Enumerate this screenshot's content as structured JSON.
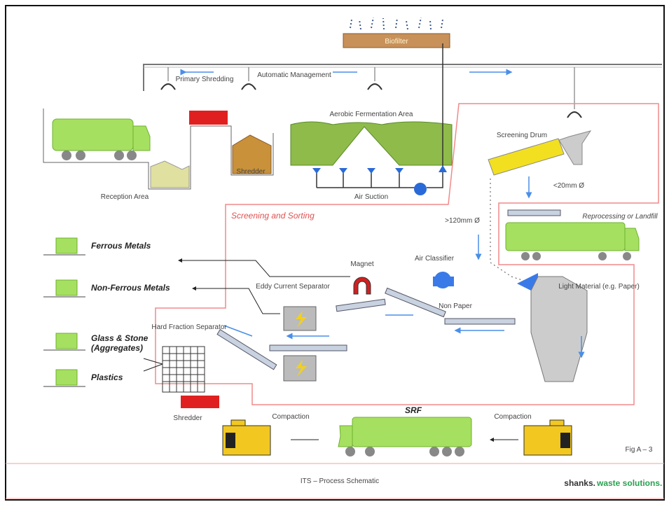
{
  "header": {
    "title": "ITS – Process Schematic",
    "figure": "Fig A – 3",
    "brand": {
      "name": "shanks.",
      "tagline": "waste solutions."
    }
  },
  "labels": {
    "biofilter": "Biofilter",
    "automatic": "Automatic Management",
    "primary": "Primary Shredding",
    "aerobic": "Aerobic Fermentation Area",
    "drum": "Screening Drum",
    "reception": "Reception Area",
    "shredded": "Shredder",
    "suction": "Air Suction",
    "fine": "<20mm Ø",
    "coarse": ">120mm Ø",
    "area": "Screening and Sorting",
    "reprocess": "Reprocessing or Landfill",
    "magnet": "Magnet",
    "classifier": "Air Classifier",
    "eddy": "Eddy Current Separator",
    "nonpaper": "Non Paper",
    "light": "Light Material (e.g. Paper)",
    "hard": "Hard Fraction Separator",
    "shredder2": "Shredder",
    "compaction1": "Compaction",
    "compaction2": "Compaction",
    "srf": "SRF"
  },
  "outputs": [
    "Ferrous Metals",
    "Non-Ferrous Metals",
    "Glass & Stone (Aggregates)",
    "Plastics"
  ]
}
